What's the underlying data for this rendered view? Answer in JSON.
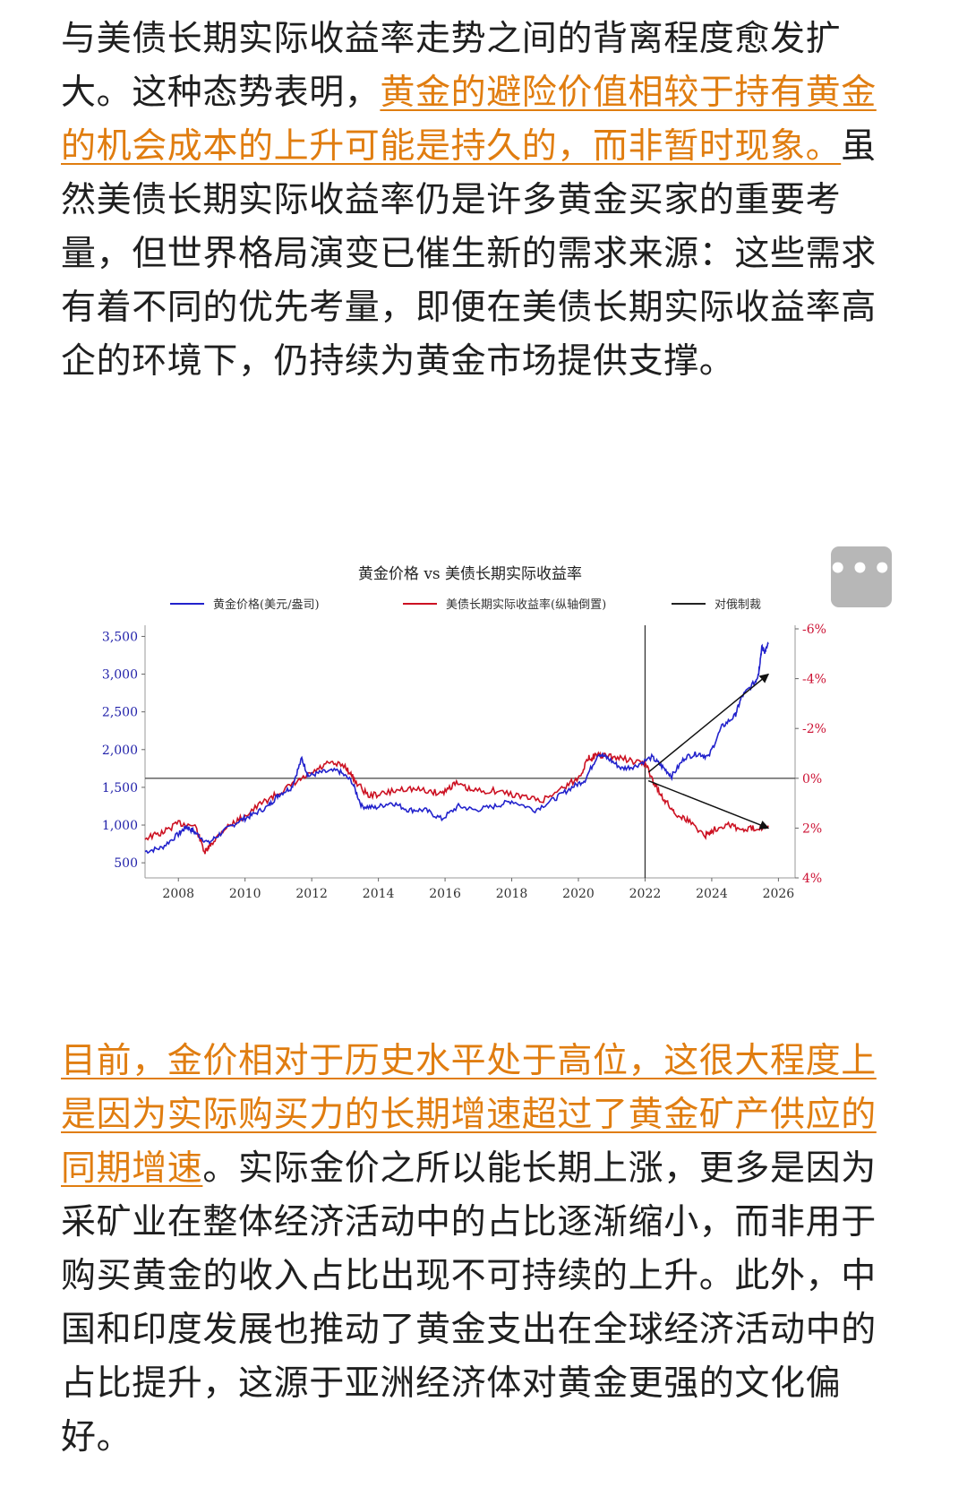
{
  "article": {
    "p1_before": "与美债长期实际收益率走势之间的背离程度愈发扩大。这种态势表明，",
    "p1_highlight": "黄金的避险价值相较于持有黄金的机会成本的上升可能是持久的，而非暂时现象。",
    "p1_after": "虽然美债长期实际收益率仍是许多黄金买家的重要考量，但世界格局演变已催生新的需求来源：这些需求有着不同的优先考量，即便在美债长期实际收益率高企的环境下，仍持续为黄金市场提供支撑。",
    "p2_highlight": "目前，金价相对于历史水平处于高位，这很大程度上是因为实际购买力的长期增速超过了黄金矿产供应的同期增速",
    "p2_after": "。实际金价之所以能长期上涨，更多是因为采矿业在整体经济活动中的占比逐渐缩小，而非用于购买黄金的收入占比出现不可持续的上升。此外，中国和印度发展也推动了黄金支出在全球经济活动中的占比提升，这源于亚洲经济体对黄金更强的文化偏好。"
  },
  "more_button": {
    "label": "•••",
    "icon": "more-dots-icon"
  },
  "colors": {
    "gold": "#2222cc",
    "yield": "#cc1122",
    "event": "#222222",
    "highlight": "#e07d10"
  },
  "chart_data": {
    "type": "line",
    "title": "黄金价格 vs 美债长期实际收益率",
    "legend": [
      {
        "name": "黄金价格(美元/盎司)",
        "color": "#2222cc"
      },
      {
        "name": "美债长期实际收益率(纵轴倒置)",
        "color": "#cc1122"
      },
      {
        "name": "对俄制裁",
        "color": "#222222"
      }
    ],
    "legend_placement": "top",
    "x_ticks": [
      "2008",
      "2010",
      "2012",
      "2014",
      "2016",
      "2018",
      "2020",
      "2022",
      "2024",
      "2026"
    ],
    "xlim": [
      2007.0,
      2026.5
    ],
    "y_left": {
      "ticks": [
        "500",
        "1,000",
        "1,500",
        "2,000",
        "2,500",
        "3,000",
        "3,500"
      ],
      "ylim": [
        300,
        3600
      ]
    },
    "y_right": {
      "ticks": [
        "-6%",
        "-4%",
        "-2%",
        "0%",
        "2%",
        "4%"
      ],
      "ylim": [
        -6,
        4
      ],
      "inverted": true
    },
    "event_line_x": 2022.0,
    "zero_line_right": 0,
    "series": [
      {
        "name": "黄金价格(美元/盎司)",
        "axis": "left",
        "x": [
          2007.0,
          2007.5,
          2008.0,
          2008.25,
          2008.5,
          2008.9,
          2009.3,
          2009.8,
          2010.2,
          2010.7,
          2011.0,
          2011.4,
          2011.7,
          2011.9,
          2012.3,
          2012.8,
          2013.2,
          2013.5,
          2013.9,
          2014.4,
          2014.9,
          2015.4,
          2015.9,
          2016.4,
          2016.9,
          2017.5,
          2018.0,
          2018.7,
          2019.3,
          2019.8,
          2020.2,
          2020.6,
          2020.9,
          2021.3,
          2021.7,
          2022.2,
          2022.5,
          2022.8,
          2023.2,
          2023.6,
          2023.9,
          2024.3,
          2024.7,
          2024.9,
          2025.3,
          2025.4,
          2025.5,
          2025.6,
          2025.7
        ],
        "y": [
          650,
          700,
          880,
          980,
          900,
          760,
          900,
          1050,
          1130,
          1250,
          1400,
          1500,
          1880,
          1650,
          1700,
          1720,
          1580,
          1250,
          1230,
          1300,
          1200,
          1200,
          1080,
          1250,
          1200,
          1250,
          1320,
          1200,
          1350,
          1500,
          1600,
          1950,
          1880,
          1750,
          1780,
          1900,
          1780,
          1650,
          1900,
          1950,
          1900,
          2300,
          2450,
          2700,
          2900,
          3000,
          3350,
          3300,
          3400
        ]
      },
      {
        "name": "美债长期实际收益率(纵轴倒置)",
        "axis": "right",
        "x": [
          2007.0,
          2007.5,
          2008.0,
          2008.5,
          2008.8,
          2009.0,
          2009.4,
          2009.9,
          2010.5,
          2011.0,
          2011.5,
          2012.0,
          2012.5,
          2013.0,
          2013.3,
          2013.7,
          2014.2,
          2014.8,
          2015.4,
          2015.9,
          2016.3,
          2016.8,
          2017.5,
          2018.2,
          2018.9,
          2019.5,
          2020.0,
          2020.3,
          2020.5,
          2020.8,
          2021.3,
          2021.9,
          2022.0,
          2022.3,
          2022.6,
          2022.9,
          2023.3,
          2023.8,
          2024.0,
          2024.5,
          2024.9,
          2025.3,
          2025.7
        ],
        "y": [
          2.4,
          2.2,
          1.8,
          1.9,
          3.0,
          2.6,
          2.0,
          1.6,
          1.0,
          0.6,
          0.2,
          -0.2,
          -0.6,
          -0.5,
          0.1,
          0.7,
          0.6,
          0.4,
          0.5,
          0.6,
          0.2,
          0.5,
          0.5,
          0.7,
          0.9,
          0.4,
          0.0,
          -0.8,
          -0.9,
          -0.9,
          -0.8,
          -0.6,
          -0.6,
          0.3,
          0.9,
          1.4,
          1.7,
          2.3,
          2.1,
          1.8,
          2.1,
          2.0,
          1.9
        ]
      }
    ],
    "arrows": [
      {
        "from": [
          2022.1,
          1700
        ],
        "to": [
          2025.7,
          3000
        ],
        "axis": "left"
      },
      {
        "from": [
          2022.1,
          0.1
        ],
        "to": [
          2025.7,
          2.0
        ],
        "axis": "right"
      }
    ]
  }
}
